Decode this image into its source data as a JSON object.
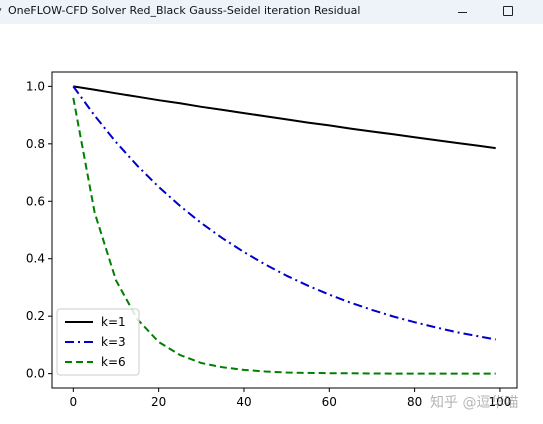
{
  "window": {
    "title": "OneFLOW-CFD Solver Red_Black Gauss-Seidel iteration Residual",
    "icon": "app-icon",
    "minimize_glyph": "minimize-icon",
    "maximize_glyph": "maximize-icon"
  },
  "watermark": "知乎 @逗华喵",
  "chart_data": {
    "type": "line",
    "title": "",
    "xlabel": "",
    "ylabel": "",
    "xlim": [
      -5,
      104
    ],
    "ylim": [
      -0.05,
      1.05
    ],
    "xticks": [
      0,
      20,
      40,
      60,
      80,
      100
    ],
    "yticks": [
      0.0,
      0.2,
      0.4,
      0.6,
      0.8,
      1.0
    ],
    "xtick_labels": [
      "0",
      "20",
      "40",
      "60",
      "80",
      "100"
    ],
    "ytick_labels": [
      "0.0",
      "0.2",
      "0.4",
      "0.6",
      "0.8",
      "1.0"
    ],
    "grid": false,
    "legend_position": "lower-left",
    "x": [
      0,
      5,
      10,
      15,
      20,
      25,
      30,
      35,
      40,
      45,
      50,
      55,
      60,
      65,
      70,
      75,
      80,
      85,
      90,
      95,
      99
    ],
    "series": [
      {
        "name": "k=1",
        "color": "#000000",
        "dash": "solid",
        "values": [
          1.0,
          0.988,
          0.976,
          0.964,
          0.952,
          0.941,
          0.929,
          0.918,
          0.907,
          0.896,
          0.885,
          0.874,
          0.864,
          0.853,
          0.843,
          0.833,
          0.823,
          0.813,
          0.803,
          0.793,
          0.785
        ]
      },
      {
        "name": "k=3",
        "color": "#0000cc",
        "dash": "dashdot",
        "values": [
          1.0,
          0.898,
          0.806,
          0.724,
          0.65,
          0.584,
          0.524,
          0.471,
          0.423,
          0.38,
          0.341,
          0.306,
          0.275,
          0.247,
          0.222,
          0.199,
          0.179,
          0.161,
          0.144,
          0.13,
          0.119
        ]
      },
      {
        "name": "k=6",
        "color": "#008000",
        "dash": "dashed",
        "values": [
          0.96,
          0.56,
          0.325,
          0.19,
          0.11,
          0.065,
          0.037,
          0.022,
          0.013,
          0.0075,
          0.004,
          0.0025,
          0.0015,
          0.001,
          0.0005,
          0.0003,
          0.0002,
          0.0001,
          0.0,
          0.0,
          0.0
        ]
      }
    ]
  }
}
